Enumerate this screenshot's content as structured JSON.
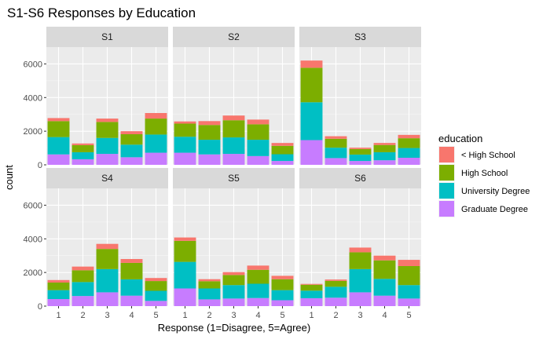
{
  "chart_data": {
    "type": "bar",
    "stacked": true,
    "title": "S1-S6 Responses by Education",
    "xlabel": "Response (1=Disagree, 5=Agree)",
    "ylabel": "count",
    "ylim": [
      0,
      7000
    ],
    "y_ticks": [
      0,
      2000,
      4000,
      6000
    ],
    "categories": [
      "1",
      "2",
      "3",
      "4",
      "5"
    ],
    "legend": {
      "title": "education",
      "position": "right",
      "entries": [
        "< High School",
        "High School",
        "University Degree",
        "Graduate Degree"
      ]
    },
    "colors": {
      "< High School": "#F8766D",
      "High School": "#7CAE00",
      "University Degree": "#00BFC4",
      "Graduate Degree": "#C77CFF"
    },
    "panels": [
      {
        "name": "S1",
        "series": [
          {
            "name": "Graduate Degree",
            "values": [
              620,
              330,
              650,
              450,
              720
            ]
          },
          {
            "name": "University Degree",
            "values": [
              1030,
              420,
              950,
              750,
              1080
            ]
          },
          {
            "name": "High School",
            "values": [
              950,
              420,
              950,
              620,
              950
            ]
          },
          {
            "name": "< High School",
            "values": [
              180,
              100,
              200,
              180,
              330
            ]
          }
        ]
      },
      {
        "name": "S2",
        "series": [
          {
            "name": "Graduate Degree",
            "values": [
              720,
              620,
              650,
              520,
              230
            ]
          },
          {
            "name": "University Degree",
            "values": [
              950,
              870,
              980,
              970,
              400
            ]
          },
          {
            "name": "High School",
            "values": [
              780,
              880,
              1020,
              920,
              500
            ]
          },
          {
            "name": "< High School",
            "values": [
              130,
              230,
              280,
              280,
              170
            ]
          }
        ]
      },
      {
        "name": "S3",
        "series": [
          {
            "name": "Graduate Degree",
            "values": [
              1470,
              400,
              230,
              270,
              420
            ]
          },
          {
            "name": "University Degree",
            "values": [
              2250,
              620,
              380,
              480,
              580
            ]
          },
          {
            "name": "High School",
            "values": [
              2050,
              530,
              330,
              430,
              580
            ]
          },
          {
            "name": "< High School",
            "values": [
              430,
              150,
              80,
              120,
              200
            ]
          }
        ]
      },
      {
        "name": "S4",
        "series": [
          {
            "name": "Graduate Degree",
            "values": [
              420,
              600,
              820,
              620,
              310
            ]
          },
          {
            "name": "University Degree",
            "values": [
              530,
              830,
              1380,
              970,
              600
            ]
          },
          {
            "name": "High School",
            "values": [
              450,
              700,
              1200,
              980,
              580
            ]
          },
          {
            "name": "< High School",
            "values": [
              150,
              220,
              300,
              230,
              180
            ]
          }
        ]
      },
      {
        "name": "S5",
        "series": [
          {
            "name": "Graduate Degree",
            "values": [
              1050,
              400,
              450,
              480,
              350
            ]
          },
          {
            "name": "University Degree",
            "values": [
              1580,
              650,
              800,
              850,
              600
            ]
          },
          {
            "name": "High School",
            "values": [
              1250,
              430,
              600,
              830,
              650
            ]
          },
          {
            "name": "< High School",
            "values": [
              200,
              120,
              170,
              250,
              200
            ]
          }
        ]
      },
      {
        "name": "S6",
        "series": [
          {
            "name": "Graduate Degree",
            "values": [
              470,
              500,
              820,
              620,
              450
            ]
          },
          {
            "name": "University Degree",
            "values": [
              450,
              650,
              1380,
              1000,
              800
            ]
          },
          {
            "name": "High School",
            "values": [
              350,
              350,
              1000,
              1100,
              1130
            ]
          },
          {
            "name": "< High School",
            "values": [
              50,
              80,
              280,
              280,
              370
            ]
          }
        ]
      }
    ]
  }
}
